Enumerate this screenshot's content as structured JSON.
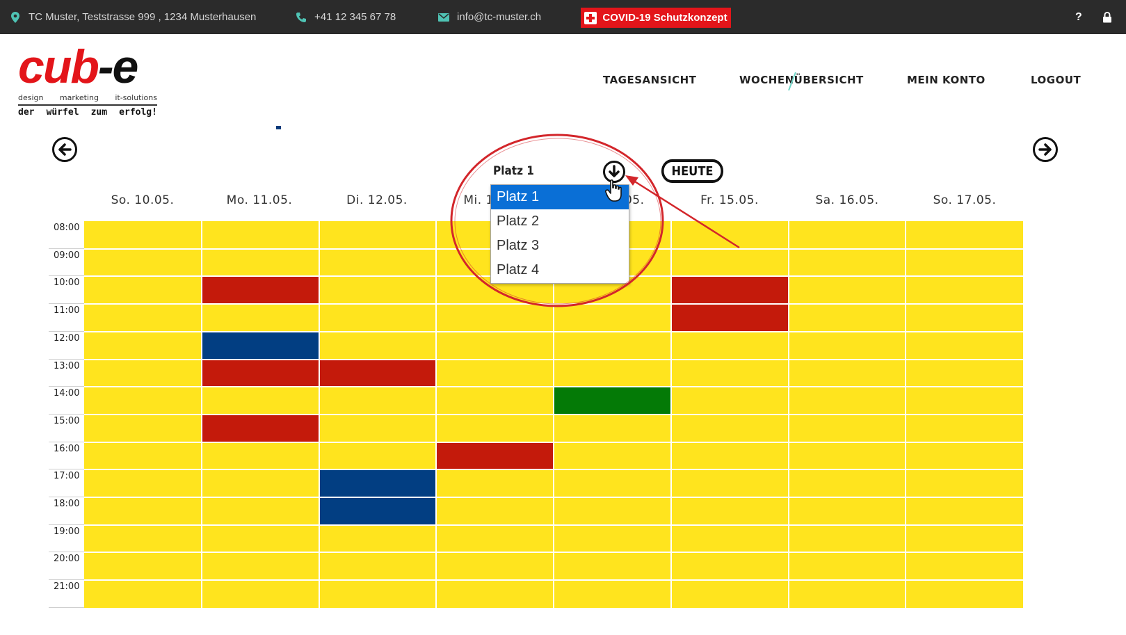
{
  "topbar": {
    "address": "TC Muster, Teststrasse 999 , 1234 Musterhausen",
    "phone": "+41 12 345 67 78",
    "email": "info@tc-muster.ch",
    "covid_label": "COVID-19 Schutzkonzept",
    "help": "?",
    "icons": [
      "location-pin-icon",
      "phone-icon",
      "mail-icon",
      "swiss-cross-icon",
      "lock-icon"
    ]
  },
  "logo": {
    "brand": "cub",
    "brand_suffix": "-e",
    "tag1": [
      "design",
      "marketing",
      "it-solutions"
    ],
    "tag2": [
      "der",
      "würfel",
      "zum",
      "erfolg!"
    ]
  },
  "nav": {
    "items": [
      {
        "label": "TAGESANSICHT"
      },
      {
        "label": "WOCHENÜBERSICHT"
      },
      {
        "label": "MEIN KONTO"
      },
      {
        "label": "LOGOUT"
      }
    ]
  },
  "controls": {
    "court_selected": "Platz 1",
    "today_label": "HEUTE",
    "prev_icon": "arrow-left-icon",
    "next_icon": "arrow-right-icon",
    "dropdown_icon": "arrow-down-circle-icon"
  },
  "dropdown": {
    "options": [
      "Platz 1",
      "Platz 2",
      "Platz 3",
      "Platz 4"
    ],
    "selected_index": 0
  },
  "calendar": {
    "days": [
      "So. 10.05.",
      "Mo. 11.05.",
      "Di. 12.05.",
      "Mi. 13.05.",
      "Do. 14.05.",
      "Fr. 15.05.",
      "Sa. 16.05.",
      "So. 17.05."
    ],
    "times": [
      "08:00",
      "09:00",
      "10:00",
      "11:00",
      "12:00",
      "13:00",
      "14:00",
      "15:00",
      "16:00",
      "17:00",
      "18:00",
      "19:00",
      "20:00",
      "21:00"
    ],
    "colors": {
      "free": "#ffe41e",
      "red": "#c41a0b",
      "blue": "#023e82",
      "green": "#047a06"
    },
    "bookings": [
      {
        "day": 1,
        "hour": 2,
        "color": "red"
      },
      {
        "day": 1,
        "hour": 4,
        "color": "blue"
      },
      {
        "day": 1,
        "hour": 5,
        "color": "red"
      },
      {
        "day": 1,
        "hour": 7,
        "color": "red"
      },
      {
        "day": 2,
        "hour": 5,
        "color": "red"
      },
      {
        "day": 2,
        "hour": 9,
        "color": "blue"
      },
      {
        "day": 2,
        "hour": 10,
        "color": "blue"
      },
      {
        "day": 3,
        "hour": 8,
        "color": "red"
      },
      {
        "day": 4,
        "hour": 6,
        "color": "green"
      },
      {
        "day": 5,
        "hour": 2,
        "color": "red"
      },
      {
        "day": 5,
        "hour": 3,
        "color": "red"
      }
    ]
  },
  "annotation": {
    "circle_color": "#d3262b",
    "arrow_color": "#d3262b"
  }
}
